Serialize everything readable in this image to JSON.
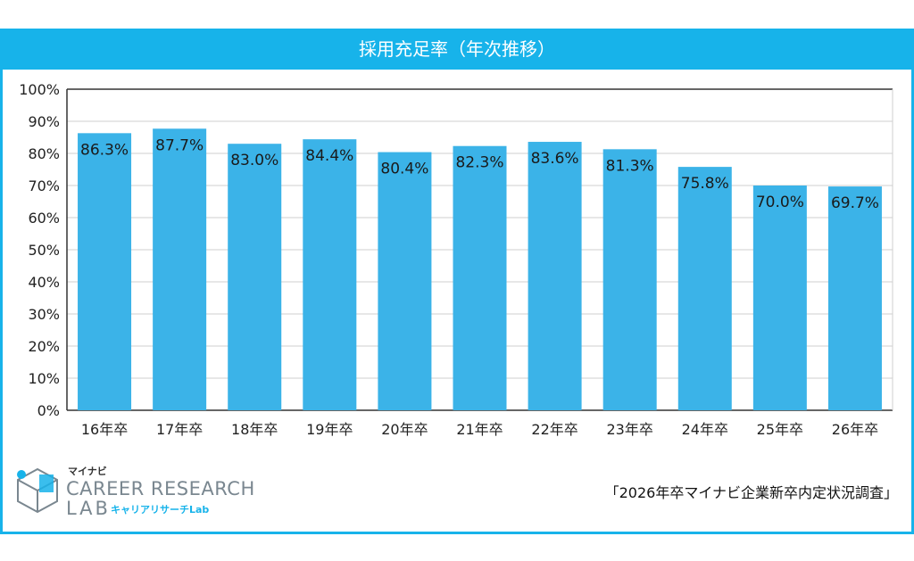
{
  "title": "採用充足率（年次推移）",
  "source": "「2026年卒マイナビ企業新卒内定状況調査」",
  "logo": {
    "brand": "マイナビ",
    "line1": "CAREER RESEARCH",
    "line2": "LAB",
    "sub": "キャリアリサーチLab"
  },
  "colors": {
    "accent": "#17b3ea",
    "bar": "#3bb3e8"
  },
  "chart_data": {
    "type": "bar",
    "title": "採用充足率（年次推移）",
    "categories": [
      "16年卒",
      "17年卒",
      "18年卒",
      "19年卒",
      "20年卒",
      "21年卒",
      "22年卒",
      "23年卒",
      "24年卒",
      "25年卒",
      "26年卒"
    ],
    "values": [
      86.3,
      87.7,
      83.0,
      84.4,
      80.4,
      82.3,
      83.6,
      81.3,
      75.8,
      70.0,
      69.7
    ],
    "value_labels": [
      "86.3%",
      "87.7%",
      "83.0%",
      "84.4%",
      "80.4%",
      "82.3%",
      "83.6%",
      "81.3%",
      "75.8%",
      "70.0%",
      "69.7%"
    ],
    "ylim": [
      0,
      100
    ],
    "yticks": [
      "0%",
      "10%",
      "20%",
      "30%",
      "40%",
      "50%",
      "60%",
      "70%",
      "80%",
      "90%",
      "100%"
    ],
    "xlabel": "",
    "ylabel": "",
    "grid": true,
    "legend": "none"
  }
}
